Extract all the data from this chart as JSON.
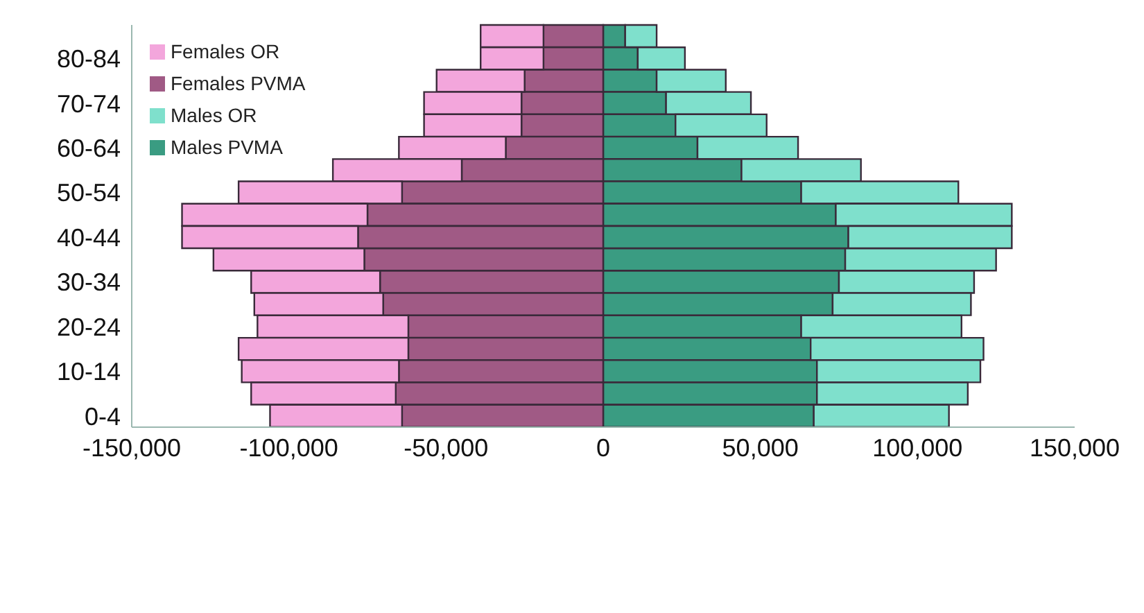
{
  "chart_data": {
    "type": "bar",
    "orientation": "horizontal",
    "stacked": true,
    "categories": [
      null,
      "80-84",
      null,
      "70-74",
      null,
      "60-64",
      null,
      "50-54",
      null,
      "40-44",
      null,
      "30-34",
      null,
      "20-24",
      null,
      "10-14",
      null,
      "0-4"
    ],
    "series": [
      {
        "name": "Males PVMA",
        "color": "#3a9c82",
        "values": [
          7000,
          11000,
          17000,
          20000,
          23000,
          30000,
          44000,
          63000,
          74000,
          78000,
          77000,
          75000,
          73000,
          63000,
          66000,
          68000,
          68000,
          67000
        ]
      },
      {
        "name": "Females PVMA",
        "color": "#a05a85",
        "values": [
          -19000,
          -19000,
          -25000,
          -26000,
          -26000,
          -31000,
          -45000,
          -64000,
          -75000,
          -78000,
          -76000,
          -71000,
          -70000,
          -62000,
          -62000,
          -65000,
          -66000,
          -64000
        ]
      },
      {
        "name": "Males OR",
        "color": "#7fe0cc",
        "values": [
          10000,
          15000,
          22000,
          27000,
          29000,
          32000,
          38000,
          50000,
          56000,
          52000,
          48000,
          43000,
          44000,
          51000,
          55000,
          52000,
          48000,
          43000
        ]
      },
      {
        "name": "Females OR",
        "color": "#f3a6dc",
        "values": [
          -20000,
          -20000,
          -28000,
          -31000,
          -31000,
          -34000,
          -41000,
          -52000,
          -59000,
          -56000,
          -48000,
          -41000,
          -41000,
          -48000,
          -54000,
          -50000,
          -46000,
          -42000
        ]
      }
    ],
    "xlim": [
      -150000,
      150000
    ],
    "xticks": [
      {
        "value": -150000,
        "label": "-150,000"
      },
      {
        "value": -100000,
        "label": "-100,000"
      },
      {
        "value": -50000,
        "label": "-50,000"
      },
      0,
      {
        "value": 50000,
        "label": "50,000"
      },
      {
        "value": 100000,
        "label": "100,000"
      },
      {
        "value": 150000,
        "label": "150,000"
      }
    ],
    "legend": "top left"
  }
}
